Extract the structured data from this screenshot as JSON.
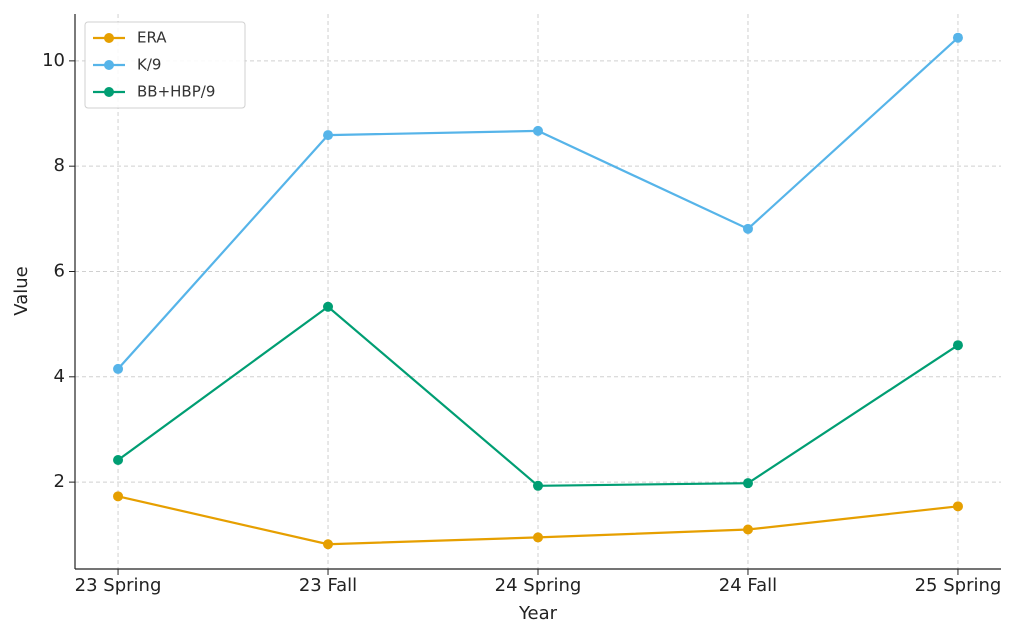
{
  "chart_data": {
    "type": "line",
    "x_label": "Year",
    "y_label": "Value",
    "categories": [
      "23 Spring",
      "23 Fall",
      "24 Spring",
      "24 Fall",
      "25 Spring"
    ],
    "series": [
      {
        "name": "ERA",
        "color": "#E69F00",
        "values": [
          1.73,
          0.82,
          0.95,
          1.1,
          1.54
        ]
      },
      {
        "name": "K/9",
        "color": "#56B4E9",
        "values": [
          4.15,
          8.59,
          8.67,
          6.81,
          10.44
        ]
      },
      {
        "name": "BB+HBP/9",
        "color": "#009E73",
        "values": [
          2.42,
          5.33,
          1.93,
          1.98,
          4.6
        ]
      }
    ],
    "ylim": [
      0.35,
      10.89
    ],
    "yticks": [
      2,
      4,
      6,
      8,
      10
    ],
    "grid": true,
    "legend": "upper-left"
  }
}
